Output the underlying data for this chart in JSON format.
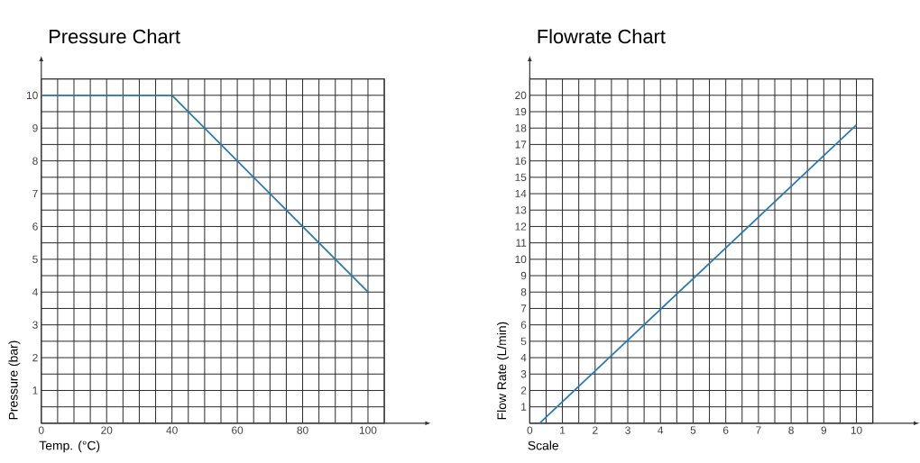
{
  "chart_data": [
    {
      "type": "line",
      "title": "Pressure Chart",
      "xlabel": "Temp. (°C)",
      "ylabel": "Pressure (bar)",
      "x": [
        0,
        40,
        100
      ],
      "values": [
        10,
        10,
        4
      ],
      "color": "#2a7ab0",
      "xlim": [
        0,
        105
      ],
      "ylim": [
        0,
        10.5
      ],
      "xticks": [
        0,
        {
          "value": 5,
          "label": null
        },
        {
          "value": 10,
          "label": null
        },
        {
          "value": 15,
          "label": null
        },
        20,
        {
          "value": 25,
          "label": null
        },
        {
          "value": 30,
          "label": null
        },
        {
          "value": 35,
          "label": null
        },
        40,
        {
          "value": 45,
          "label": null
        },
        {
          "value": 50,
          "label": null
        },
        {
          "value": 55,
          "label": null
        },
        60,
        {
          "value": 65,
          "label": null
        },
        {
          "value": 70,
          "label": null
        },
        {
          "value": 75,
          "label": null
        },
        80,
        {
          "value": 85,
          "label": null
        },
        {
          "value": 90,
          "label": null
        },
        {
          "value": 95,
          "label": null
        },
        100,
        {
          "value": 105,
          "label": null
        }
      ],
      "yticks": [
        {
          "value": 0,
          "label": null
        },
        {
          "value": 0.5,
          "label": null
        },
        1,
        {
          "value": 1.5,
          "label": null
        },
        2,
        {
          "value": 2.5,
          "label": null
        },
        3,
        {
          "value": 3.5,
          "label": null
        },
        4,
        {
          "value": 4.5,
          "label": null
        },
        5,
        {
          "value": 5.5,
          "label": null
        },
        6,
        {
          "value": 6.5,
          "label": null
        },
        7,
        {
          "value": 7.5,
          "label": null
        },
        8,
        {
          "value": 8.5,
          "label": null
        },
        9,
        {
          "value": 9.5,
          "label": null
        },
        10,
        {
          "value": 10.5,
          "label": null
        }
      ],
      "grid": true,
      "marker": "none",
      "line_style": "solid"
    },
    {
      "type": "line",
      "title": "Flowrate Chart",
      "xlabel": "Scale",
      "ylabel": "Flow Rate (L/min)",
      "x": [
        0.3,
        10
      ],
      "values": [
        0,
        18.2
      ],
      "color": "#2a7ab0",
      "xlim": [
        0,
        10.5
      ],
      "ylim": [
        0,
        21
      ],
      "xticks": [
        0,
        {
          "value": 0.5,
          "label": null
        },
        1,
        {
          "value": 1.5,
          "label": null
        },
        2,
        {
          "value": 2.5,
          "label": null
        },
        3,
        {
          "value": 3.5,
          "label": null
        },
        4,
        {
          "value": 4.5,
          "label": null
        },
        5,
        {
          "value": 5.5,
          "label": null
        },
        6,
        {
          "value": 6.5,
          "label": null
        },
        7,
        {
          "value": 7.5,
          "label": null
        },
        8,
        {
          "value": 8.5,
          "label": null
        },
        9,
        {
          "value": 9.5,
          "label": null
        },
        10,
        {
          "value": 10.5,
          "label": null
        }
      ],
      "yticks": [
        {
          "value": 0,
          "label": null
        },
        1,
        2,
        3,
        4,
        5,
        6,
        7,
        8,
        9,
        10,
        11,
        12,
        13,
        14,
        15,
        16,
        17,
        18,
        19,
        20,
        {
          "value": 21,
          "label": null
        }
      ],
      "grid": true,
      "marker": "none",
      "line_style": "solid"
    }
  ]
}
